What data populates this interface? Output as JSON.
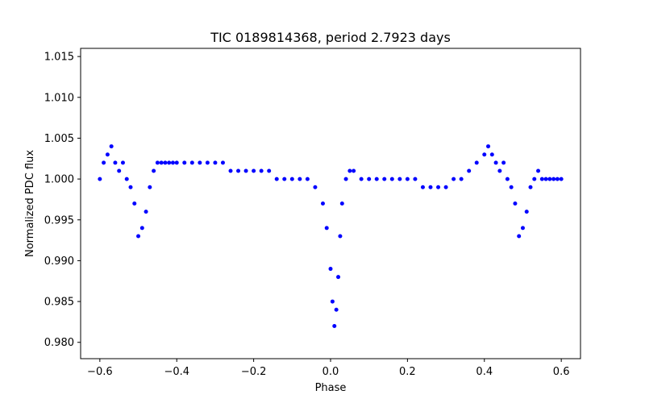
{
  "chart_data": {
    "type": "scatter",
    "title": "TIC 0189814368, period 2.7923 days",
    "xlabel": "Phase",
    "ylabel": "Normalized PDC flux",
    "xlim": [
      -0.65,
      0.65
    ],
    "ylim": [
      0.978,
      1.016
    ],
    "x_ticks": [
      -0.6,
      -0.4,
      -0.2,
      0.0,
      0.2,
      0.4,
      0.6
    ],
    "x_tick_labels": [
      "−0.6",
      "−0.4",
      "−0.2",
      "0.0",
      "0.2",
      "0.4",
      "0.6"
    ],
    "y_ticks": [
      0.98,
      0.985,
      0.99,
      0.995,
      1.0,
      1.005,
      1.01,
      1.015
    ],
    "y_tick_labels": [
      "0.980",
      "0.985",
      "0.990",
      "0.995",
      "1.000",
      "1.005",
      "1.010",
      "1.015"
    ],
    "grid": false,
    "marker_color": "#0000ff",
    "series": [
      {
        "x": [
          -0.6,
          -0.59,
          -0.58,
          -0.57,
          -0.56,
          -0.55,
          -0.54,
          -0.53,
          -0.52,
          -0.51,
          -0.5,
          -0.49,
          -0.48,
          -0.47,
          -0.46,
          -0.45,
          -0.44,
          -0.43,
          -0.42,
          -0.41,
          -0.4,
          -0.38,
          -0.36,
          -0.34,
          -0.32,
          -0.3,
          -0.28,
          -0.26,
          -0.24,
          -0.22,
          -0.2,
          -0.18,
          -0.16,
          -0.14,
          -0.12,
          -0.1,
          -0.08,
          -0.06,
          -0.04,
          -0.02,
          -0.01,
          0.0,
          0.005,
          0.01,
          0.015,
          0.02,
          0.025,
          0.03,
          0.04,
          0.05,
          0.06,
          0.08,
          0.1,
          0.12,
          0.14,
          0.16,
          0.18,
          0.2,
          0.22,
          0.24,
          0.26,
          0.28,
          0.3,
          0.32,
          0.34,
          0.36,
          0.38,
          0.4,
          0.41,
          0.42,
          0.43,
          0.44,
          0.45,
          0.46,
          0.47,
          0.48,
          0.49,
          0.5,
          0.51,
          0.52,
          0.53,
          0.54,
          0.55,
          0.56,
          0.57,
          0.58,
          0.59,
          0.6
        ],
        "y": [
          1.0,
          1.002,
          1.003,
          1.004,
          1.002,
          1.001,
          1.002,
          1.0,
          0.999,
          0.997,
          0.993,
          0.994,
          0.996,
          0.999,
          1.001,
          1.002,
          1.002,
          1.002,
          1.002,
          1.002,
          1.002,
          1.002,
          1.002,
          1.002,
          1.002,
          1.002,
          1.002,
          1.001,
          1.001,
          1.001,
          1.001,
          1.001,
          1.001,
          1.0,
          1.0,
          1.0,
          1.0,
          1.0,
          0.999,
          0.997,
          0.994,
          0.989,
          0.985,
          0.982,
          0.984,
          0.988,
          0.993,
          0.997,
          1.0,
          1.001,
          1.001,
          1.0,
          1.0,
          1.0,
          1.0,
          1.0,
          1.0,
          1.0,
          1.0,
          0.999,
          0.999,
          0.999,
          0.999,
          1.0,
          1.0,
          1.001,
          1.002,
          1.003,
          1.004,
          1.003,
          1.002,
          1.001,
          1.002,
          1.0,
          0.999,
          0.997,
          0.993,
          0.994,
          0.996,
          0.999,
          1.0,
          1.001,
          1.0,
          1.0,
          1.0,
          1.0,
          1.0,
          1.0
        ]
      }
    ]
  }
}
